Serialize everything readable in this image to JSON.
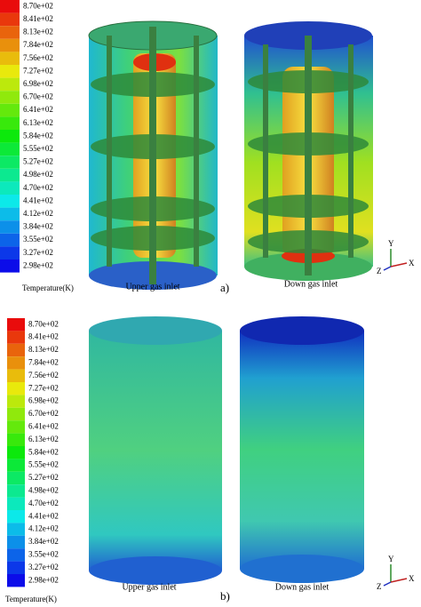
{
  "panels": [
    {
      "label": "a)",
      "colorbar": {
        "title": "Temperature(K)",
        "ticks": [
          "8.70e+02",
          "8.41e+02",
          "8.13e+02",
          "7.84e+02",
          "7.56e+02",
          "7.27e+02",
          "6.98e+02",
          "6.70e+02",
          "6.41e+02",
          "6.13e+02",
          "5.84e+02",
          "5.55e+02",
          "5.27e+02",
          "4.98e+02",
          "4.70e+02",
          "4.41e+02",
          "4.12e+02",
          "3.84e+02",
          "3.55e+02",
          "3.27e+02",
          "2.98e+02"
        ]
      },
      "captions": [
        "Upper gas inlet",
        "Down gas inlet"
      ],
      "axes": [
        "Y",
        "Z",
        "X"
      ]
    },
    {
      "label": "b)",
      "colorbar": {
        "title": "Temperature(K)",
        "ticks": [
          "8.70e+02",
          "8.41e+02",
          "8.13e+02",
          "7.84e+02",
          "7.56e+02",
          "7.27e+02",
          "6.98e+02",
          "6.70e+02",
          "6.41e+02",
          "6.13e+02",
          "5.84e+02",
          "5.55e+02",
          "5.27e+02",
          "4.98e+02",
          "4.70e+02",
          "4.41e+02",
          "4.12e+02",
          "3.84e+02",
          "3.55e+02",
          "3.27e+02",
          "2.98e+02"
        ]
      },
      "captions": [
        "Upper gas inlet",
        "Down gas inlet"
      ],
      "axes": [
        "Y",
        "Z",
        "X"
      ]
    }
  ]
}
